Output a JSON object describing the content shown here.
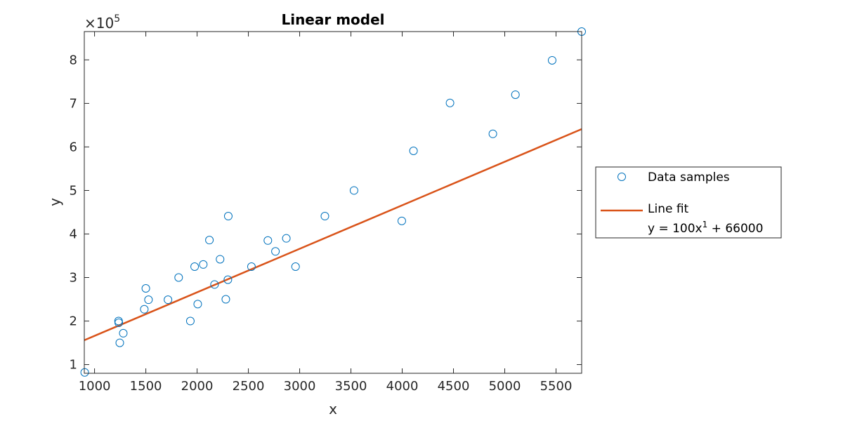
{
  "chart_data": {
    "type": "scatter",
    "title": "Linear model",
    "xlabel": "x",
    "ylabel": "y",
    "y_exponent_label": "×10",
    "y_exponent_power": "5",
    "y_scale": 100000,
    "xlim": [
      900,
      5750
    ],
    "ylim": [
      80000,
      865000
    ],
    "xticks": [
      1000,
      1500,
      2000,
      2500,
      3000,
      3500,
      4000,
      4500,
      5000,
      5500
    ],
    "yticks": [
      1,
      2,
      3,
      4,
      5,
      6,
      7,
      8
    ],
    "grid": false,
    "legend_position": "outside-right",
    "legend": {
      "samples_label": "Data samples",
      "fit_label": "Line fit",
      "fit_equation_prefix": "y = 100x",
      "fit_equation_power": "1",
      "fit_equation_suffix": " + 66000"
    },
    "colors": {
      "samples": "#0072BD",
      "fit": "#D95319",
      "axis": "#262626"
    },
    "series": [
      {
        "name": "Data samples",
        "kind": "markers",
        "points": [
          [
            904,
            82000
          ],
          [
            1234,
            200000
          ],
          [
            1236,
            196000
          ],
          [
            1246,
            150000
          ],
          [
            1280,
            172000
          ],
          [
            1485,
            227000
          ],
          [
            1500,
            275000
          ],
          [
            1526,
            249000
          ],
          [
            1716,
            249000
          ],
          [
            1820,
            300000
          ],
          [
            1934,
            200000
          ],
          [
            1976,
            325000
          ],
          [
            2006,
            239000
          ],
          [
            2060,
            330000
          ],
          [
            2120,
            386000
          ],
          [
            2170,
            284000
          ],
          [
            2224,
            342000
          ],
          [
            2280,
            250000
          ],
          [
            2300,
            295000
          ],
          [
            2304,
            441000
          ],
          [
            2530,
            325000
          ],
          [
            2690,
            385000
          ],
          [
            2764,
            360000
          ],
          [
            2870,
            390000
          ],
          [
            2960,
            325000
          ],
          [
            3246,
            441000
          ],
          [
            3530,
            500000
          ],
          [
            3996,
            430000
          ],
          [
            4110,
            591000
          ],
          [
            4466,
            701000
          ],
          [
            4884,
            630000
          ],
          [
            5104,
            720000
          ],
          [
            5462,
            799000
          ],
          [
            5750,
            865000
          ]
        ]
      },
      {
        "name": "Line fit",
        "kind": "line",
        "points": [
          [
            900,
            156000
          ],
          [
            5750,
            641000
          ]
        ]
      }
    ]
  }
}
